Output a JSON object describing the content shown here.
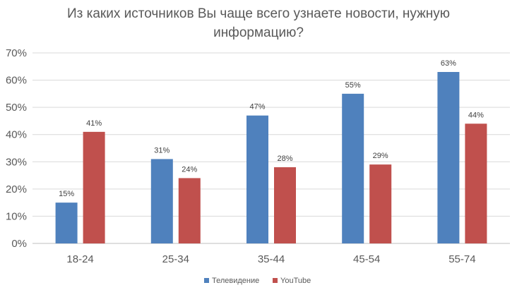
{
  "chart_data": {
    "type": "bar",
    "title_lines": [
      "Из каких источников Вы чаще всего узнаете новости, нужную",
      "информацию?"
    ],
    "categories": [
      "18-24",
      "25-34",
      "35-44",
      "45-54",
      "55-74"
    ],
    "series": [
      {
        "name": "Телевидение",
        "color": "#4f81bd",
        "values": [
          15,
          31,
          47,
          55,
          63
        ],
        "labels": [
          "15%",
          "31%",
          "47%",
          "55%",
          "63%"
        ]
      },
      {
        "name": "YouTube",
        "color": "#c0504d",
        "values": [
          41,
          24,
          28,
          29,
          44
        ],
        "labels": [
          "41%",
          "24%",
          "28%",
          "29%",
          "44%"
        ]
      }
    ],
    "y_ticks": [
      "0%",
      "10%",
      "20%",
      "30%",
      "40%",
      "50%",
      "60%",
      "70%"
    ],
    "ylim": [
      0,
      70
    ],
    "grid": true,
    "legend_position": "bottom"
  }
}
